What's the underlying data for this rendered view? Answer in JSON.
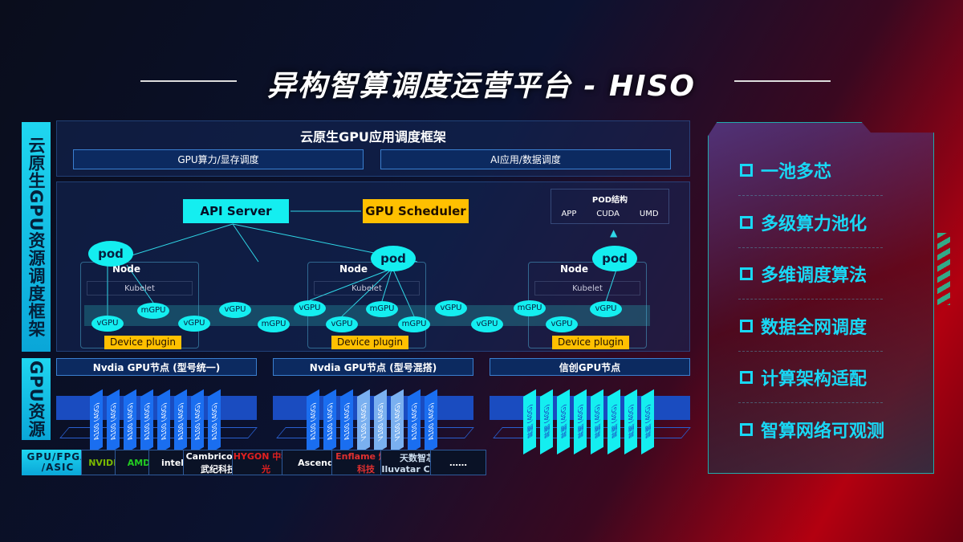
{
  "title": "异构智算调度运营平台 - HISO",
  "side_labels": {
    "top": "云原生GPU资源调度框架",
    "middle": "GPU资源",
    "bottom": "GPU/FPGA /ASIC"
  },
  "framework": {
    "title": "云原生GPU应用调度框架",
    "sub": [
      "GPU算力/显存调度",
      "AI应用/数据调度"
    ]
  },
  "cluster": {
    "api_server": "API Server",
    "scheduler": "GPU Scheduler",
    "pod_struct": {
      "title": "POD结构",
      "items": [
        "APP",
        "CUDA",
        "UMD"
      ]
    },
    "pod": "pod",
    "node": "Node",
    "kubelet": "Kubelet",
    "device_plugin": "Device plugin",
    "gpus": [
      "vGPU",
      "mGPU",
      "vGPU",
      "vGPU",
      "mGPU",
      "vGPU",
      "vGPU",
      "mGPU",
      "mGPU",
      "vGPU",
      "vGPU",
      "mGPU",
      "vGPU",
      "vGPU"
    ]
  },
  "gpu_nodes": [
    {
      "title": "Nvdia GPU节点 (型号统一)",
      "cards": [
        "A100 (40G)",
        "A100 (40G)",
        "A100 (40G)",
        "A100 (40G)",
        "A100 (40G)",
        "A100 (40G)",
        "A100 (40G)",
        "A100 (40G)"
      ]
    },
    {
      "title": "Nvdia GPU节点 (型号混搭)",
      "cards": [
        "A100 (40G)",
        "A100 (40G)",
        "A100 (40G)",
        "V100 (40G)",
        "V100 (40G)",
        "V100 (40G)",
        "A100 (40G)",
        "A100 (40G)"
      ]
    },
    {
      "title": "信创GPU节点",
      "cards": [
        "昇腾 (40G)",
        "昇腾 (40G)",
        "昇腾 (40G)",
        "昇腾 (40G)",
        "昇腾 (40G)",
        "昇腾 (40G)",
        "昇腾 (40G)",
        "昇腾 (40G)"
      ]
    }
  ],
  "vendors": [
    "NVIDIA",
    "AMD",
    "intel",
    "Cambricon 寒武纪科技",
    "HYGON 中科海光",
    "Ascend",
    "Enflame 燧原科技",
    "天数智芯 Iluvatar CoreX",
    "……"
  ],
  "features": [
    "一池多芯",
    "多级算力池化",
    "多维调度算法",
    "数据全网调度",
    "计算架构适配",
    "智算网络可观测"
  ],
  "colors": {
    "cyan": "#14eef0",
    "yellow": "#ffc000",
    "card_blue": "#1a6ef0",
    "card_light": "#7ab0f0",
    "feature": "#18d8f5"
  }
}
